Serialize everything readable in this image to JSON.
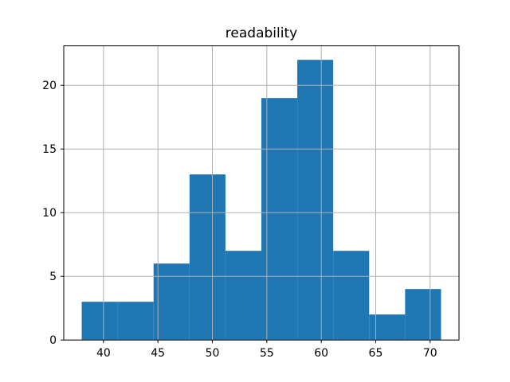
{
  "figure": {
    "background": "#ffffff"
  },
  "chart_data": {
    "type": "bar",
    "subtype": "histogram",
    "title": "readability",
    "xlabel": "",
    "ylabel": "",
    "bar_color": "#1f77b4",
    "grid": true,
    "grid_color": "#b0b0b0",
    "spine_color": "#000000",
    "text_color": "#000000",
    "bin_edges": [
      38.0,
      41.3,
      44.6,
      47.9,
      51.2,
      54.5,
      57.8,
      61.1,
      64.4,
      67.7,
      71.0
    ],
    "counts": [
      3,
      3,
      6,
      13,
      7,
      19,
      22,
      7,
      2,
      4
    ],
    "xlim": [
      36.35,
      72.65
    ],
    "ylim": [
      0,
      23.1
    ],
    "xticks": [
      40,
      45,
      50,
      55,
      60,
      65,
      70
    ],
    "yticks": [
      0,
      5,
      10,
      15,
      20
    ],
    "legend": null
  }
}
